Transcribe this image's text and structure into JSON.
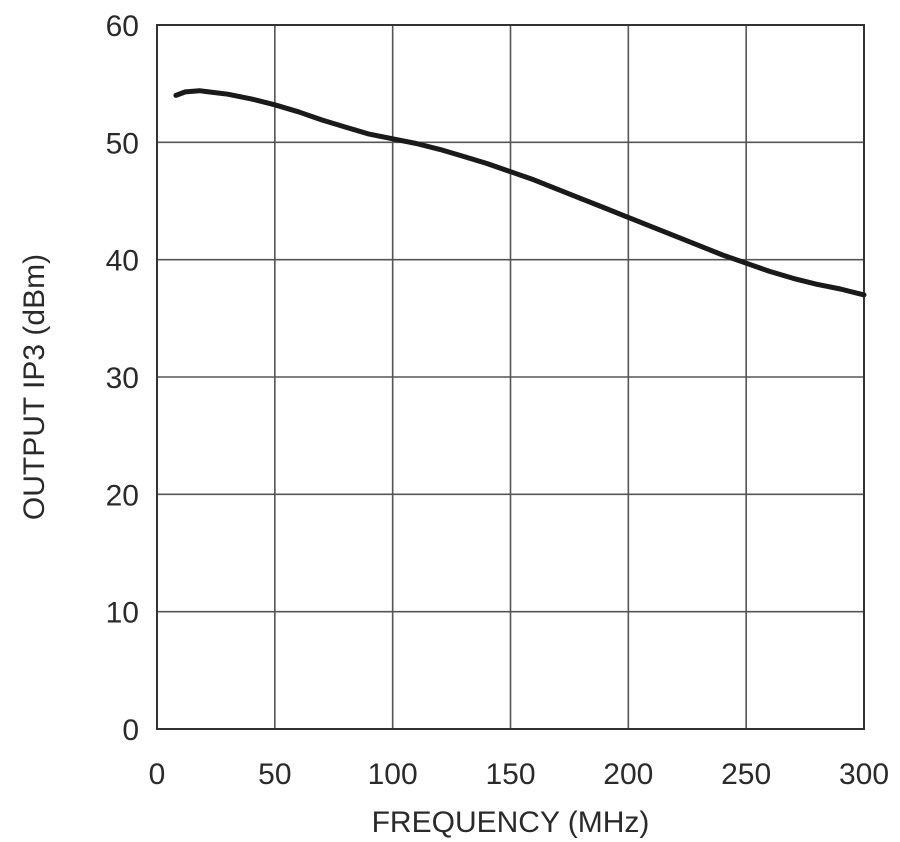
{
  "chart_data": {
    "type": "line",
    "title": "",
    "xlabel": "FREQUENCY (MHz)",
    "ylabel": "OUTPUT IP3 (dBm)",
    "xlim": [
      0,
      300
    ],
    "ylim": [
      0,
      60
    ],
    "xticks": [
      0,
      50,
      100,
      150,
      200,
      250,
      300
    ],
    "yticks": [
      0,
      10,
      20,
      30,
      40,
      50,
      60
    ],
    "grid": true,
    "series": [
      {
        "color": "#1a1a1a",
        "x": [
          8,
          12,
          18,
          22,
          30,
          40,
          50,
          60,
          70,
          80,
          90,
          100,
          110,
          120,
          130,
          140,
          150,
          160,
          170,
          180,
          190,
          200,
          210,
          220,
          230,
          240,
          250,
          260,
          270,
          280,
          290,
          300
        ],
        "y": [
          54.0,
          54.3,
          54.4,
          54.3,
          54.1,
          53.7,
          53.2,
          52.6,
          51.9,
          51.3,
          50.7,
          50.3,
          49.9,
          49.4,
          48.8,
          48.2,
          47.5,
          46.8,
          46.0,
          45.2,
          44.4,
          43.6,
          42.8,
          42.0,
          41.2,
          40.4,
          39.7,
          39.0,
          38.4,
          37.9,
          37.5,
          37.0
        ]
      }
    ]
  }
}
